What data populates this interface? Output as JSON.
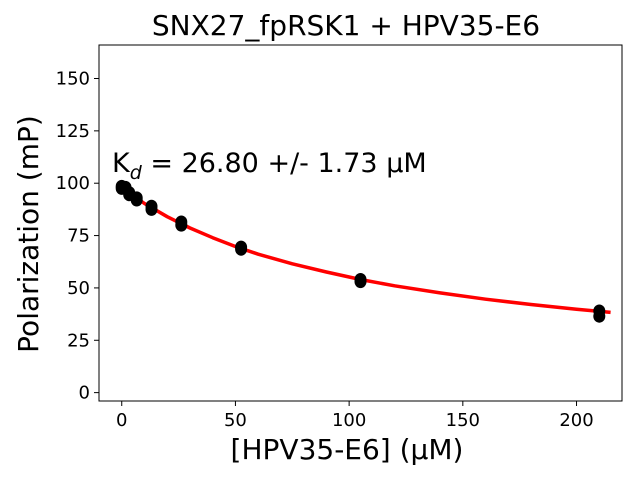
{
  "chart_data": {
    "type": "scatter",
    "title": "SNX27_fpRSK1 + HPV35-E6",
    "xlabel": "[HPV35-E6] (µM)",
    "ylabel": "Polarization (mP)",
    "xlim": [
      -10,
      220
    ],
    "ylim": [
      -4,
      166
    ],
    "xticks": [
      0,
      50,
      100,
      150,
      200
    ],
    "yticks": [
      0,
      25,
      50,
      75,
      100,
      125,
      150
    ],
    "xtick_labels": [
      "0",
      "50",
      "100",
      "150",
      "200"
    ],
    "ytick_labels": [
      "0",
      "25",
      "50",
      "75",
      "100",
      "125",
      "150"
    ],
    "grid": false,
    "annotation": {
      "base": "K",
      "sub": "d",
      "text": " = 26.80 +/- 1.73 µM"
    },
    "series": [
      {
        "kind": "points",
        "color": "#000000",
        "points": [
          {
            "x": 0,
            "y": 98.5
          },
          {
            "x": 0,
            "y": 97.5
          },
          {
            "x": 1.64,
            "y": 98.0
          },
          {
            "x": 3.28,
            "y": 95.5
          },
          {
            "x": 3.28,
            "y": 94.5
          },
          {
            "x": 6.56,
            "y": 93.0
          },
          {
            "x": 6.56,
            "y": 92.0
          },
          {
            "x": 13.1,
            "y": 89.0
          },
          {
            "x": 13.1,
            "y": 87.5
          },
          {
            "x": 26.2,
            "y": 81.5
          },
          {
            "x": 26.2,
            "y": 80.0
          },
          {
            "x": 52.5,
            "y": 69.5
          },
          {
            "x": 52.5,
            "y": 68.5
          },
          {
            "x": 105,
            "y": 54.0
          },
          {
            "x": 105,
            "y": 53.0
          },
          {
            "x": 210,
            "y": 39.0
          },
          {
            "x": 210,
            "y": 36.5
          }
        ]
      },
      {
        "kind": "fit",
        "color": "#ff0000",
        "points": [
          {
            "x": 0,
            "y": 98.0
          },
          {
            "x": 10,
            "y": 90.3
          },
          {
            "x": 20,
            "y": 84.0
          },
          {
            "x": 30,
            "y": 78.6
          },
          {
            "x": 40,
            "y": 74.0
          },
          {
            "x": 50,
            "y": 69.8
          },
          {
            "x": 60,
            "y": 66.1
          },
          {
            "x": 75,
            "y": 61.5
          },
          {
            "x": 90,
            "y": 57.6
          },
          {
            "x": 105,
            "y": 54.0
          },
          {
            "x": 120,
            "y": 51.0
          },
          {
            "x": 140,
            "y": 47.6
          },
          {
            "x": 160,
            "y": 44.6
          },
          {
            "x": 180,
            "y": 42.1
          },
          {
            "x": 200,
            "y": 39.8
          },
          {
            "x": 215,
            "y": 38.3
          }
        ]
      }
    ]
  }
}
